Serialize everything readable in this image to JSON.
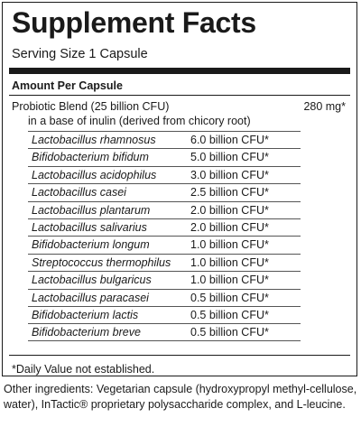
{
  "label": {
    "title": "Supplement Facts",
    "serving_size": "Serving Size 1 Capsule",
    "amount_header": "Amount Per Capsule",
    "blend": {
      "name": "Probiotic Blend (25 billion CFU)",
      "amount": "280 mg*",
      "base": "in a base of inulin (derived from chicory root)"
    },
    "strains": [
      {
        "name": "Lactobacillus rhamnosus",
        "amount": "6.0 billion CFU*"
      },
      {
        "name": "Bifidobacterium bifidum",
        "amount": "5.0 billion CFU*"
      },
      {
        "name": "Lactobacillus acidophilus",
        "amount": "3.0 billion CFU*"
      },
      {
        "name": "Lactobacillus casei",
        "amount": "2.5 billion CFU*"
      },
      {
        "name": "Lactobacillus plantarum",
        "amount": "2.0 billion CFU*"
      },
      {
        "name": "Lactobacillus salivarius",
        "amount": "2.0 billion CFU*"
      },
      {
        "name": "Bifidobacterium longum",
        "amount": "1.0 billion CFU*"
      },
      {
        "name": "Streptococcus thermophilus",
        "amount": "1.0 billion CFU*"
      },
      {
        "name": "Lactobacillus bulgaricus",
        "amount": "1.0 billion CFU*"
      },
      {
        "name": "Lactobacillus paracasei",
        "amount": "0.5 billion CFU*"
      },
      {
        "name": "Bifidobacterium lactis",
        "amount": "0.5 billion CFU*"
      },
      {
        "name": "Bifidobacterium breve",
        "amount": "0.5 billion CFU*"
      }
    ],
    "footnote": "*Daily Value not established."
  },
  "other_ingredients": "Other ingredients: Vegetarian capsule (hydroxypropyl methyl-cellulose, water), InTactic® proprietary polysaccharide complex, and L-leucine."
}
